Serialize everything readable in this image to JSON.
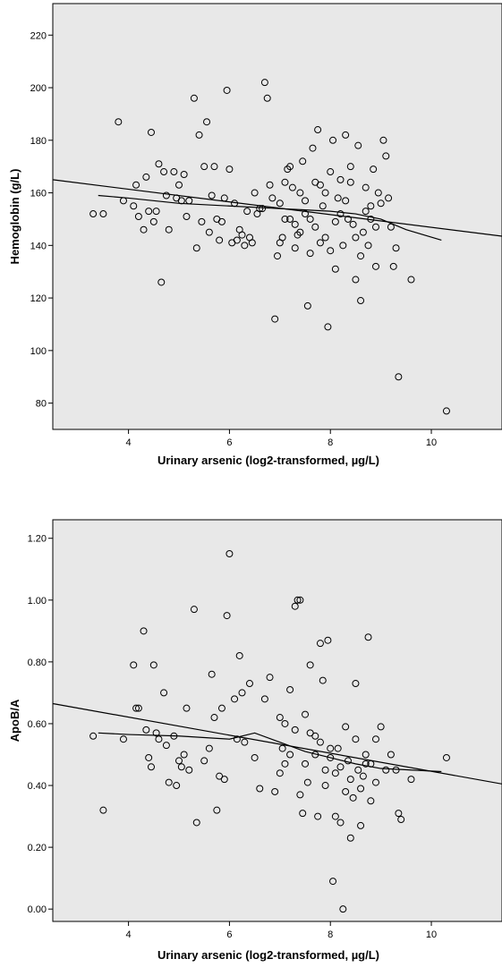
{
  "colors": {
    "plot_bg": "#e8e8e8",
    "axis": "#000000",
    "marker": "#000000",
    "line": "#000000"
  },
  "chart_data": [
    {
      "type": "scatter",
      "xlabel": "Urinary arsenic (log2-transformed, µg/L)",
      "ylabel": "Hemoglobin (g/L)",
      "xlim": [
        2.5,
        11.4
      ],
      "ylim": [
        70,
        232
      ],
      "xticks": [
        4,
        6,
        8,
        10
      ],
      "xtick_labels": [
        "4",
        "6",
        "8",
        "10"
      ],
      "yticks": [
        80,
        100,
        120,
        140,
        160,
        180,
        200,
        220
      ],
      "ytick_labels": [
        "80",
        "100",
        "120",
        "140",
        "160",
        "180",
        "200",
        "220"
      ],
      "fit_line": {
        "x": [
          2.5,
          11.4
        ],
        "y": [
          165,
          143.5
        ]
      },
      "loess_line": {
        "x": [
          3.4,
          4,
          5,
          6,
          7,
          7.5,
          8,
          8.5,
          9,
          9.5,
          10.2
        ],
        "y": [
          159,
          158,
          156,
          155,
          154,
          153.5,
          153,
          152,
          150,
          146,
          142
        ]
      },
      "points": [
        [
          3.3,
          152
        ],
        [
          3.5,
          152
        ],
        [
          3.8,
          187
        ],
        [
          3.9,
          157
        ],
        [
          4.1,
          155
        ],
        [
          4.15,
          163
        ],
        [
          4.2,
          151
        ],
        [
          4.3,
          146
        ],
        [
          4.35,
          166
        ],
        [
          4.4,
          153
        ],
        [
          4.45,
          183
        ],
        [
          4.5,
          149
        ],
        [
          4.55,
          153
        ],
        [
          4.6,
          171
        ],
        [
          4.65,
          126
        ],
        [
          4.7,
          168
        ],
        [
          4.75,
          159
        ],
        [
          4.8,
          146
        ],
        [
          4.9,
          168
        ],
        [
          4.95,
          158
        ],
        [
          5.0,
          163
        ],
        [
          5.05,
          157
        ],
        [
          5.1,
          167
        ],
        [
          5.15,
          151
        ],
        [
          5.2,
          157
        ],
        [
          5.3,
          196
        ],
        [
          5.35,
          139
        ],
        [
          5.4,
          182
        ],
        [
          5.45,
          149
        ],
        [
          5.5,
          170
        ],
        [
          5.55,
          187
        ],
        [
          5.6,
          145
        ],
        [
          5.65,
          159
        ],
        [
          5.7,
          170
        ],
        [
          5.75,
          150
        ],
        [
          5.8,
          142
        ],
        [
          5.85,
          149
        ],
        [
          5.9,
          158
        ],
        [
          5.95,
          199
        ],
        [
          6.0,
          169
        ],
        [
          6.05,
          141
        ],
        [
          6.1,
          156
        ],
        [
          6.15,
          142
        ],
        [
          6.2,
          146
        ],
        [
          6.25,
          144
        ],
        [
          6.3,
          140
        ],
        [
          6.35,
          153
        ],
        [
          6.4,
          143
        ],
        [
          6.45,
          141
        ],
        [
          6.5,
          160
        ],
        [
          6.55,
          152
        ],
        [
          6.6,
          154
        ],
        [
          6.65,
          154
        ],
        [
          6.7,
          202
        ],
        [
          6.75,
          196
        ],
        [
          6.8,
          163
        ],
        [
          6.85,
          158
        ],
        [
          6.9,
          112
        ],
        [
          6.95,
          136
        ],
        [
          7.0,
          156
        ],
        [
          7.05,
          143
        ],
        [
          7.1,
          164
        ],
        [
          7.15,
          169
        ],
        [
          7.2,
          150
        ],
        [
          7.25,
          162
        ],
        [
          7.3,
          139
        ],
        [
          7.35,
          144
        ],
        [
          7.4,
          145
        ],
        [
          7.45,
          172
        ],
        [
          7.5,
          157
        ],
        [
          7.55,
          117
        ],
        [
          7.6,
          150
        ],
        [
          7.65,
          177
        ],
        [
          7.7,
          164
        ],
        [
          7.75,
          184
        ],
        [
          7.8,
          163
        ],
        [
          7.85,
          155
        ],
        [
          7.9,
          143
        ],
        [
          7.95,
          109
        ],
        [
          8.0,
          168
        ],
        [
          8.05,
          180
        ],
        [
          8.1,
          131
        ],
        [
          8.15,
          158
        ],
        [
          8.2,
          152
        ],
        [
          8.25,
          140
        ],
        [
          8.3,
          182
        ],
        [
          8.35,
          150
        ],
        [
          8.4,
          164
        ],
        [
          8.45,
          148
        ],
        [
          8.5,
          127
        ],
        [
          8.55,
          178
        ],
        [
          8.6,
          119
        ],
        [
          8.65,
          145
        ],
        [
          8.7,
          162
        ],
        [
          8.75,
          140
        ],
        [
          8.8,
          150
        ],
        [
          8.85,
          169
        ],
        [
          8.9,
          132
        ],
        [
          8.95,
          160
        ],
        [
          9.0,
          156
        ],
        [
          9.05,
          180
        ],
        [
          9.1,
          174
        ],
        [
          9.15,
          158
        ],
        [
          9.2,
          147
        ],
        [
          9.25,
          132
        ],
        [
          9.3,
          139
        ],
        [
          9.35,
          90
        ],
        [
          9.6,
          127
        ],
        [
          10.3,
          77
        ],
        [
          7.1,
          150
        ],
        [
          7.3,
          148
        ],
        [
          7.5,
          152
        ],
        [
          7.7,
          147
        ],
        [
          7.9,
          160
        ],
        [
          8.1,
          149
        ],
        [
          8.3,
          157
        ],
        [
          8.5,
          143
        ],
        [
          8.7,
          153
        ],
        [
          8.9,
          147
        ],
        [
          7.2,
          170
        ],
        [
          7.6,
          137
        ],
        [
          8.0,
          138
        ],
        [
          8.4,
          170
        ],
        [
          8.6,
          136
        ],
        [
          7.4,
          160
        ],
        [
          7.8,
          141
        ],
        [
          8.2,
          165
        ],
        [
          8.8,
          155
        ],
        [
          7.0,
          141
        ]
      ]
    },
    {
      "type": "scatter",
      "xlabel": "Urinary arsenic (log2-transformed, µg/L)",
      "ylabel": "ApoB/A",
      "xlim": [
        2.5,
        11.4
      ],
      "ylim": [
        -0.04,
        1.26
      ],
      "xticks": [
        4,
        6,
        8,
        10
      ],
      "xtick_labels": [
        "4",
        "6",
        "8",
        "10"
      ],
      "yticks": [
        0.0,
        0.2,
        0.4,
        0.6,
        0.8,
        1.0,
        1.2
      ],
      "ytick_labels": [
        "0.00",
        "0.20",
        "0.40",
        "0.60",
        "0.80",
        "1.00",
        "1.20"
      ],
      "fit_line": {
        "x": [
          2.5,
          11.4
        ],
        "y": [
          0.665,
          0.405
        ]
      },
      "loess_line": {
        "x": [
          3.4,
          4,
          5,
          6,
          6.5,
          7,
          7.5,
          8,
          8.5,
          9,
          10.2
        ],
        "y": [
          0.57,
          0.565,
          0.56,
          0.55,
          0.57,
          0.54,
          0.51,
          0.49,
          0.47,
          0.455,
          0.445
        ]
      },
      "points": [
        [
          3.3,
          0.56
        ],
        [
          3.5,
          0.32
        ],
        [
          3.9,
          0.55
        ],
        [
          4.1,
          0.79
        ],
        [
          4.15,
          0.65
        ],
        [
          4.2,
          0.65
        ],
        [
          4.3,
          0.9
        ],
        [
          4.35,
          0.58
        ],
        [
          4.4,
          0.49
        ],
        [
          4.45,
          0.46
        ],
        [
          4.5,
          0.79
        ],
        [
          4.55,
          0.57
        ],
        [
          4.6,
          0.55
        ],
        [
          4.7,
          0.7
        ],
        [
          4.75,
          0.53
        ],
        [
          4.8,
          0.41
        ],
        [
          4.9,
          0.56
        ],
        [
          4.95,
          0.4
        ],
        [
          5.0,
          0.48
        ],
        [
          5.05,
          0.46
        ],
        [
          5.1,
          0.5
        ],
        [
          5.15,
          0.65
        ],
        [
          5.2,
          0.45
        ],
        [
          5.3,
          0.97
        ],
        [
          5.35,
          0.28
        ],
        [
          5.5,
          0.48
        ],
        [
          5.6,
          0.52
        ],
        [
          5.65,
          0.76
        ],
        [
          5.7,
          0.62
        ],
        [
          5.75,
          0.32
        ],
        [
          5.8,
          0.43
        ],
        [
          5.85,
          0.65
        ],
        [
          5.9,
          0.42
        ],
        [
          5.95,
          0.95
        ],
        [
          6.0,
          1.15
        ],
        [
          6.1,
          0.68
        ],
        [
          6.15,
          0.55
        ],
        [
          6.2,
          0.82
        ],
        [
          6.25,
          0.7
        ],
        [
          6.3,
          0.54
        ],
        [
          6.4,
          0.73
        ],
        [
          6.5,
          0.49
        ],
        [
          6.6,
          0.39
        ],
        [
          6.7,
          0.68
        ],
        [
          6.8,
          0.75
        ],
        [
          6.9,
          0.38
        ],
        [
          7.0,
          0.62
        ],
        [
          7.05,
          0.52
        ],
        [
          7.1,
          0.47
        ],
        [
          7.2,
          0.71
        ],
        [
          7.3,
          0.98
        ],
        [
          7.35,
          1.0
        ],
        [
          7.4,
          1.0
        ],
        [
          7.45,
          0.31
        ],
        [
          7.5,
          0.47
        ],
        [
          7.55,
          0.41
        ],
        [
          7.6,
          0.79
        ],
        [
          7.7,
          0.56
        ],
        [
          7.75,
          0.3
        ],
        [
          7.8,
          0.86
        ],
        [
          7.85,
          0.74
        ],
        [
          7.9,
          0.45
        ],
        [
          7.95,
          0.87
        ],
        [
          8.0,
          0.52
        ],
        [
          8.05,
          0.09
        ],
        [
          8.1,
          0.3
        ],
        [
          8.15,
          0.52
        ],
        [
          8.2,
          0.28
        ],
        [
          8.25,
          0.0
        ],
        [
          8.3,
          0.59
        ],
        [
          8.35,
          0.48
        ],
        [
          8.4,
          0.23
        ],
        [
          8.45,
          0.36
        ],
        [
          8.5,
          0.73
        ],
        [
          8.55,
          0.45
        ],
        [
          8.6,
          0.27
        ],
        [
          8.65,
          0.43
        ],
        [
          8.7,
          0.5
        ],
        [
          8.75,
          0.88
        ],
        [
          8.8,
          0.47
        ],
        [
          8.9,
          0.55
        ],
        [
          9.0,
          0.59
        ],
        [
          9.1,
          0.45
        ],
        [
          9.2,
          0.5
        ],
        [
          9.3,
          0.45
        ],
        [
          9.35,
          0.31
        ],
        [
          9.4,
          0.29
        ],
        [
          9.6,
          0.42
        ],
        [
          10.3,
          0.49
        ],
        [
          7.1,
          0.6
        ],
        [
          7.3,
          0.58
        ],
        [
          7.5,
          0.63
        ],
        [
          7.7,
          0.5
        ],
        [
          7.9,
          0.4
        ],
        [
          8.1,
          0.44
        ],
        [
          8.3,
          0.38
        ],
        [
          8.5,
          0.55
        ],
        [
          8.7,
          0.47
        ],
        [
          8.9,
          0.41
        ],
        [
          7.2,
          0.5
        ],
        [
          7.6,
          0.57
        ],
        [
          8.0,
          0.49
        ],
        [
          8.4,
          0.42
        ],
        [
          8.6,
          0.39
        ],
        [
          7.4,
          0.37
        ],
        [
          7.8,
          0.54
        ],
        [
          8.2,
          0.46
        ],
        [
          8.8,
          0.35
        ],
        [
          7.0,
          0.44
        ]
      ]
    }
  ]
}
